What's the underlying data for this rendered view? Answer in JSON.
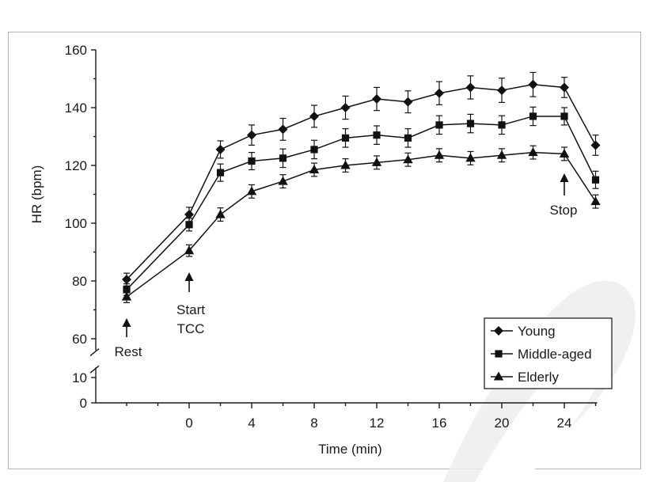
{
  "chart_data": {
    "type": "line",
    "xlabel": "Time (min)",
    "ylabel": "HR (bpm)",
    "xlim": [
      -4,
      26
    ],
    "ylim": [
      55,
      160
    ],
    "x_ticks": [
      0,
      4,
      8,
      12,
      16,
      20,
      24
    ],
    "y_ticks": [
      60,
      80,
      100,
      120,
      140,
      160
    ],
    "y_lower_ticks": [
      0,
      10
    ],
    "axis_break": true,
    "grid": false,
    "legend": "bottom-right",
    "x": [
      -4,
      0,
      2,
      4,
      6,
      8,
      10,
      12,
      14,
      16,
      18,
      20,
      22,
      24,
      26
    ],
    "series": [
      {
        "name": "Young",
        "marker": "diamond",
        "values": [
          80.5,
          103,
          125.5,
          130.5,
          132.5,
          137,
          140,
          143,
          142,
          145,
          147,
          146,
          148,
          147,
          127
        ],
        "errors": [
          2.2,
          2.5,
          3,
          3.5,
          3.8,
          3.8,
          4,
          4,
          3.8,
          4,
          4,
          4.2,
          4.2,
          3.5,
          3.5
        ]
      },
      {
        "name": "Middle-aged",
        "marker": "square",
        "values": [
          77,
          99.5,
          117.5,
          121.5,
          122.5,
          125.5,
          129.5,
          130.5,
          129.5,
          134,
          134.5,
          134,
          137,
          137,
          115
        ],
        "errors": [
          2,
          2.2,
          3,
          3,
          3.2,
          3.2,
          3.2,
          3.2,
          3.2,
          3.2,
          3.2,
          3.2,
          3.2,
          3,
          3
        ]
      },
      {
        "name": "Elderly",
        "marker": "triangle",
        "values": [
          74.5,
          90.5,
          103,
          111,
          114.5,
          118.5,
          120,
          121,
          122,
          123.5,
          122.5,
          123.5,
          124.5,
          124,
          107.5
        ],
        "errors": [
          2,
          2,
          2.3,
          2.3,
          2.3,
          2.3,
          2.3,
          2.3,
          2.3,
          2.3,
          2.3,
          2.3,
          2.3,
          2.3,
          2.3
        ]
      }
    ],
    "annotations": [
      {
        "text": "Rest",
        "x": -4
      },
      {
        "text": "Start\nTCC",
        "x": 0
      },
      {
        "text": "Stop",
        "x": 24
      }
    ]
  }
}
